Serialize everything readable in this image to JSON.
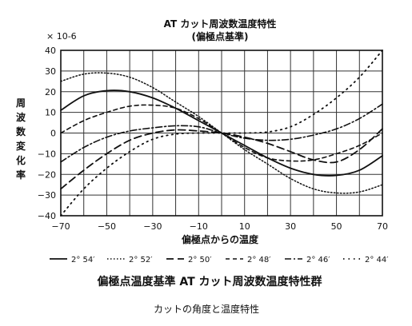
{
  "chart_data": {
    "type": "line",
    "title": "AT カット周波数温度特性",
    "subtitle": "(偏極点基準)",
    "ylabel": "周波数変化率",
    "xlabel": "偏極点からの温度",
    "y_unit": "× 10-6",
    "xlim": [
      -70,
      70
    ],
    "ylim": [
      -40,
      40
    ],
    "x_ticks": [
      -70,
      -50,
      -30,
      -10,
      10,
      30,
      50,
      70
    ],
    "x_tick_labels": [
      "−70",
      "−50",
      "−30",
      "−10",
      "10",
      "30",
      "50",
      "70"
    ],
    "y_ticks": [
      40,
      30,
      20,
      10,
      0,
      -10,
      -20,
      -30,
      -40
    ],
    "y_tick_labels": [
      "40",
      "30",
      "20",
      "10",
      "0",
      "−10",
      "−20",
      "−30",
      "−40"
    ],
    "grid": true,
    "legend_placement": "bottom",
    "series": [
      {
        "name": "2° 54′",
        "style": "solid",
        "x": [
          -70,
          -60,
          -50,
          -40,
          -30,
          -20,
          -10,
          0,
          10,
          20,
          30,
          40,
          50,
          60,
          70
        ],
        "y": [
          11,
          18,
          20.5,
          20,
          17,
          12,
          6,
          0,
          -6,
          -12,
          -17,
          -20,
          -20.5,
          -18,
          -11
        ]
      },
      {
        "name": "2° 52′",
        "style": "dotted",
        "x": [
          -70,
          -60,
          -50,
          -40,
          -30,
          -20,
          -10,
          0,
          10,
          20,
          30,
          40,
          50,
          60,
          70
        ],
        "y": [
          25,
          28.5,
          29,
          27,
          22,
          15,
          8,
          0,
          -8,
          -15,
          -22,
          -27,
          -29,
          -28.5,
          -25
        ]
      },
      {
        "name": "2° 50′",
        "style": "long-dash",
        "x": [
          -70,
          -60,
          -50,
          -40,
          -30,
          -20,
          -10,
          0,
          10,
          20,
          30,
          40,
          50,
          60,
          70
        ],
        "y": [
          -27,
          -18,
          -10,
          -3.5,
          0,
          1.5,
          1,
          0,
          -2,
          -5,
          -9,
          -13,
          -14,
          -8,
          2
        ]
      },
      {
        "name": "2° 48′",
        "style": "short-dash",
        "x": [
          -70,
          -60,
          -50,
          -40,
          -30,
          -20,
          -10,
          0,
          10,
          20,
          30,
          40,
          50,
          60,
          70
        ],
        "y": [
          0,
          6,
          10,
          13,
          13.5,
          12,
          7,
          0,
          -7,
          -12,
          -13.5,
          -13,
          -10,
          -6,
          0
        ]
      },
      {
        "name": "2° 46′",
        "style": "dash-dot",
        "x": [
          -70,
          -60,
          -50,
          -40,
          -30,
          -20,
          -10,
          0,
          10,
          20,
          30,
          40,
          50,
          60,
          70
        ],
        "y": [
          -14,
          -7,
          -2,
          1,
          2.5,
          3.5,
          3,
          0,
          -2.5,
          -3.5,
          -3,
          -1,
          2,
          7,
          14
        ]
      },
      {
        "name": "2° 44′",
        "style": "sparse-dot",
        "x": [
          -70,
          -60,
          -50,
          -40,
          -30,
          -20,
          -10,
          0,
          10,
          20,
          30,
          40,
          50,
          60,
          70
        ],
        "y": [
          -40,
          -27,
          -17,
          -9,
          -3,
          -0.5,
          0,
          0,
          0,
          0.5,
          3,
          9,
          17,
          27,
          40
        ]
      }
    ]
  },
  "figure": {
    "legend_heading": "偏極点温度基準 AT カット周波数温度特性群",
    "caption": "カットの角度と温度特性"
  }
}
